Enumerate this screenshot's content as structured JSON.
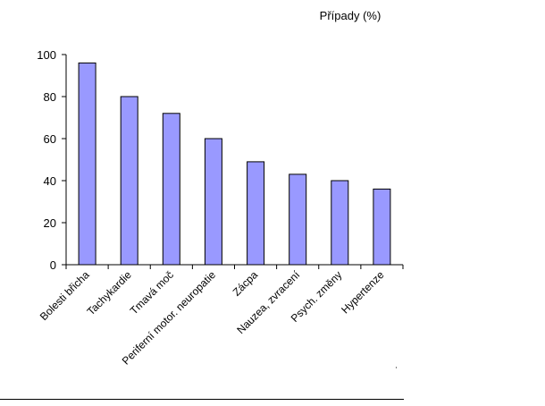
{
  "chart_data": {
    "type": "bar",
    "title": "Případy (%)",
    "xlabel": "",
    "ylabel": "",
    "categories": [
      "Bolesti břicha",
      "Tachykardie",
      "Tmavá moč",
      "Periferní motor. neuropatie",
      "Zácpa",
      "Nauzea, zvracení",
      "Psych. změny",
      "Hypertenze"
    ],
    "values": [
      96,
      80,
      72,
      60,
      49,
      43,
      40,
      36
    ],
    "ylim": [
      0,
      100
    ],
    "yticks": [
      "0",
      "20",
      "40",
      "60",
      "80",
      "100"
    ],
    "grid": false,
    "legend": "none",
    "bar_color": "#9999ff",
    "bar_stroke": "#000000"
  }
}
